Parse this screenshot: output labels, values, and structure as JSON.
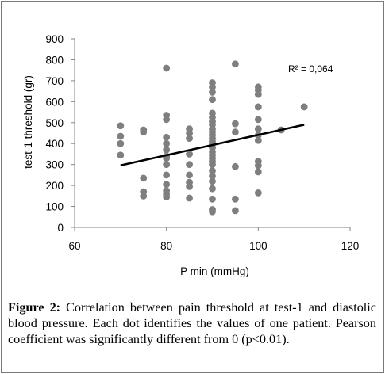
{
  "chart_data": {
    "type": "scatter",
    "xlabel": "P min (mmHg)",
    "ylabel": "test-1 threshold (gr)",
    "xlim": [
      60,
      120
    ],
    "ylim": [
      0,
      900
    ],
    "xticks": [
      "60",
      "80",
      "100",
      "120"
    ],
    "yticks": [
      "0",
      "100",
      "200",
      "300",
      "400",
      "500",
      "600",
      "700",
      "800",
      "900"
    ],
    "annotation": "R² = 0,064",
    "points": [
      [
        70,
        485
      ],
      [
        70,
        435
      ],
      [
        70,
        400
      ],
      [
        70,
        345
      ],
      [
        75,
        465
      ],
      [
        75,
        455
      ],
      [
        75,
        235
      ],
      [
        75,
        170
      ],
      [
        75,
        150
      ],
      [
        80,
        760
      ],
      [
        80,
        535
      ],
      [
        80,
        515
      ],
      [
        80,
        430
      ],
      [
        80,
        400
      ],
      [
        80,
        370
      ],
      [
        80,
        340
      ],
      [
        80,
        330
      ],
      [
        80,
        300
      ],
      [
        80,
        250
      ],
      [
        80,
        205
      ],
      [
        80,
        175
      ],
      [
        80,
        160
      ],
      [
        80,
        145
      ],
      [
        85,
        470
      ],
      [
        85,
        450
      ],
      [
        85,
        425
      ],
      [
        85,
        350
      ],
      [
        85,
        300
      ],
      [
        85,
        250
      ],
      [
        85,
        215
      ],
      [
        85,
        195
      ],
      [
        85,
        140
      ],
      [
        90,
        690
      ],
      [
        90,
        670
      ],
      [
        90,
        645
      ],
      [
        90,
        610
      ],
      [
        90,
        545
      ],
      [
        90,
        525
      ],
      [
        90,
        505
      ],
      [
        90,
        490
      ],
      [
        90,
        470
      ],
      [
        90,
        455
      ],
      [
        90,
        440
      ],
      [
        90,
        425
      ],
      [
        90,
        410
      ],
      [
        90,
        395
      ],
      [
        90,
        380
      ],
      [
        90,
        360
      ],
      [
        90,
        345
      ],
      [
        90,
        330
      ],
      [
        90,
        315
      ],
      [
        90,
        300
      ],
      [
        90,
        270
      ],
      [
        90,
        245
      ],
      [
        90,
        220
      ],
      [
        90,
        185
      ],
      [
        90,
        135
      ],
      [
        90,
        85
      ],
      [
        90,
        75
      ],
      [
        95,
        780
      ],
      [
        95,
        495
      ],
      [
        95,
        455
      ],
      [
        95,
        290
      ],
      [
        95,
        135
      ],
      [
        95,
        80
      ],
      [
        100,
        670
      ],
      [
        100,
        655
      ],
      [
        100,
        635
      ],
      [
        100,
        575
      ],
      [
        100,
        515
      ],
      [
        100,
        470
      ],
      [
        100,
        440
      ],
      [
        100,
        415
      ],
      [
        100,
        315
      ],
      [
        100,
        295
      ],
      [
        100,
        265
      ],
      [
        100,
        165
      ],
      [
        105,
        465
      ],
      [
        110,
        575
      ]
    ],
    "trendline": {
      "x": [
        70,
        110
      ],
      "y": [
        296,
        490
      ]
    },
    "grid": false,
    "marker_color": "#7f7f7f",
    "line_color": "#000000"
  },
  "caption": {
    "label": "Figure 2:",
    "text": " Correlation between pain threshold at test-1 and diastolic blood pressure. Each dot identifies the values of one patient. Pearson coefficient was significantly different from 0 (p<0.01)."
  }
}
